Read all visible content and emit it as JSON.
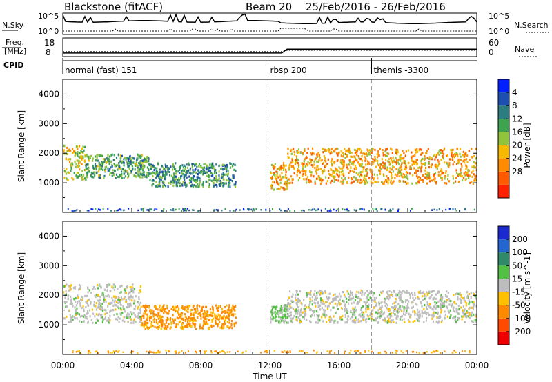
{
  "header": {
    "radar": "Blackstone (fitACF)",
    "beam": "Beam 20",
    "dates": "25/Feb/2016 - 26/Feb/2016"
  },
  "noise_panel": {
    "left_label": "N.Sky",
    "right_label": "N.Search",
    "left_ticks": [
      "10^5",
      "10^0"
    ],
    "right_ticks": [
      "10^5",
      "10^0"
    ]
  },
  "freq_panel": {
    "left_label_top": "Freq.",
    "left_label_bottom": "[MHz]",
    "right_label": "Nave",
    "left_ticks": [
      "18",
      "8"
    ],
    "right_ticks": [
      "60",
      "0"
    ],
    "freq_mhz": [
      {
        "x": 0,
        "y": 10.2
      },
      {
        "x": 12.7,
        "y": 10.2
      },
      {
        "x": 13.0,
        "y": 14.2
      },
      {
        "x": 24,
        "y": 14.2
      }
    ],
    "nave": [
      {
        "x": 0,
        "y": 22
      },
      {
        "x": 12.7,
        "y": 22
      },
      {
        "x": 13.0,
        "y": 30
      },
      {
        "x": 24,
        "y": 30
      }
    ]
  },
  "cpid": {
    "label": "CPID",
    "segments": [
      {
        "text": "normal (fast) 151",
        "start_h": 0
      },
      {
        "text": "rbsp 200",
        "start_h": 11.9
      },
      {
        "text": "themis -3300",
        "start_h": 17.9
      }
    ]
  },
  "chart_data": [
    {
      "type": "heatmap",
      "title": "",
      "xlabel": "",
      "ylabel": "Slant Range [km]",
      "xlim": [
        0,
        24
      ],
      "ylim": [
        0,
        4500
      ],
      "yticks": [
        "1000",
        "2000",
        "3000",
        "4000"
      ],
      "colorbar": {
        "label": "Power [dB]",
        "ticks": [
          "4",
          "8",
          "12",
          "16",
          "20",
          "24",
          "28"
        ],
        "colors": [
          "#0020ff",
          "#1c4fb0",
          "#2b7d82",
          "#3ea34f",
          "#8fc43c",
          "#f6b800",
          "#ff8c00",
          "#ff5a00",
          "#ff2000"
        ]
      },
      "echo_regions": [
        {
          "t0": 0.0,
          "t1": 1.3,
          "range_km": [
            1100,
            2300
          ],
          "dominant_db": 20
        },
        {
          "t0": 1.3,
          "t1": 5.0,
          "range_km": [
            1200,
            2000
          ],
          "dominant_db": 14
        },
        {
          "t0": 5.0,
          "t1": 10.0,
          "range_km": [
            900,
            1700
          ],
          "dominant_db": 12
        },
        {
          "t0": 12.0,
          "t1": 13.0,
          "range_km": [
            800,
            1700
          ],
          "dominant_db": 24
        },
        {
          "t0": 13.0,
          "t1": 24.0,
          "range_km": [
            1000,
            2200
          ],
          "dominant_db": 24
        }
      ]
    },
    {
      "type": "heatmap",
      "title": "",
      "xlabel": "Time UT",
      "ylabel": "Slant Range [km]",
      "xlim": [
        0,
        24
      ],
      "ylim": [
        0,
        4500
      ],
      "xticks": [
        "00:00",
        "04:00",
        "08:00",
        "12:00",
        "16:00",
        "20:00",
        "00:00"
      ],
      "yticks": [
        "1000",
        "2000",
        "3000",
        "4000"
      ],
      "colorbar": {
        "label": "Velocity [m s^-1]",
        "ticks": [
          "200",
          "100",
          "50",
          "15",
          "-15",
          "-50",
          "-100",
          "-200"
        ],
        "colors": [
          "#1a2ad0",
          "#2366cf",
          "#2f8a6a",
          "#52c043",
          "#bdbdbd",
          "#ffc000",
          "#ff8a00",
          "#ff4a00",
          "#ee0000"
        ]
      },
      "echo_regions": [
        {
          "t0": 0.0,
          "t1": 4.5,
          "range_km": [
            1100,
            2400
          ],
          "velocity_ms": 0
        },
        {
          "t0": 4.5,
          "t1": 10.0,
          "range_km": [
            900,
            1700
          ],
          "velocity_ms": -60
        },
        {
          "t0": 12.0,
          "t1": 13.0,
          "range_km": [
            1100,
            1700
          ],
          "velocity_ms": 20
        },
        {
          "t0": 13.0,
          "t1": 24.0,
          "range_km": [
            1100,
            2200
          ],
          "velocity_ms": 0
        }
      ]
    }
  ]
}
